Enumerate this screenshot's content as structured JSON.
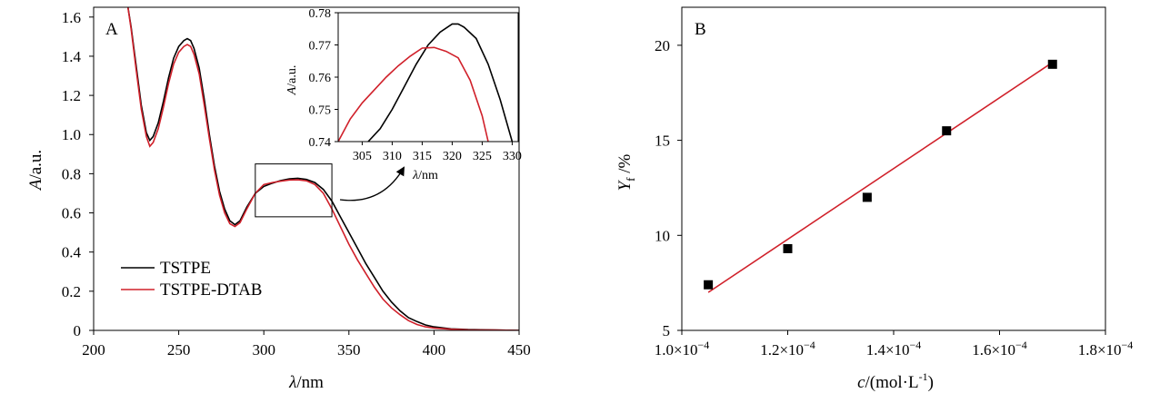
{
  "colors": {
    "black_series": "#000000",
    "red_series": "#d0202a"
  },
  "chart_data": [
    {
      "id": "A",
      "type": "line",
      "panel_label": "A",
      "xlabel_italic": "λ",
      "xlabel_rest": "/nm",
      "ylabel_italic": "A",
      "ylabel_rest": "/a.u.",
      "xlim": [
        200,
        450
      ],
      "ylim": [
        0,
        1.65
      ],
      "xticks": [
        200,
        250,
        300,
        350,
        400,
        450
      ],
      "xtick_labels": [
        "200",
        "250",
        "300",
        "350",
        "400",
        "450"
      ],
      "yticks": [
        0,
        0.2,
        0.4,
        0.6,
        0.8,
        1.0,
        1.2,
        1.4,
        1.6
      ],
      "ytick_labels": [
        "0",
        "0.2",
        "0.4",
        "0.6",
        "0.8",
        "1.0",
        "1.2",
        "1.4",
        "1.6"
      ],
      "legend_position": "bottom-left",
      "series": [
        {
          "name": "TSTPE",
          "color": "#000000",
          "points": [
            [
              220,
              1.66
            ],
            [
              222,
              1.55
            ],
            [
              225,
              1.35
            ],
            [
              228,
              1.15
            ],
            [
              231,
              1.01
            ],
            [
              233,
              0.97
            ],
            [
              235,
              0.99
            ],
            [
              238,
              1.06
            ],
            [
              241,
              1.17
            ],
            [
              244,
              1.29
            ],
            [
              247,
              1.39
            ],
            [
              250,
              1.45
            ],
            [
              253,
              1.48
            ],
            [
              255,
              1.49
            ],
            [
              257,
              1.48
            ],
            [
              259,
              1.44
            ],
            [
              262,
              1.34
            ],
            [
              265,
              1.18
            ],
            [
              268,
              1.0
            ],
            [
              271,
              0.84
            ],
            [
              274,
              0.71
            ],
            [
              277,
              0.62
            ],
            [
              280,
              0.56
            ],
            [
              283,
              0.54
            ],
            [
              286,
              0.56
            ],
            [
              290,
              0.63
            ],
            [
              295,
              0.7
            ],
            [
              300,
              0.735
            ],
            [
              305,
              0.752
            ],
            [
              310,
              0.765
            ],
            [
              315,
              0.774
            ],
            [
              320,
              0.777
            ],
            [
              325,
              0.771
            ],
            [
              330,
              0.755
            ],
            [
              335,
              0.72
            ],
            [
              340,
              0.66
            ],
            [
              345,
              0.58
            ],
            [
              350,
              0.5
            ],
            [
              355,
              0.42
            ],
            [
              360,
              0.34
            ],
            [
              365,
              0.27
            ],
            [
              370,
              0.2
            ],
            [
              375,
              0.145
            ],
            [
              380,
              0.1
            ],
            [
              385,
              0.065
            ],
            [
              390,
              0.045
            ],
            [
              395,
              0.028
            ],
            [
              400,
              0.018
            ],
            [
              410,
              0.008
            ],
            [
              420,
              0.004
            ],
            [
              435,
              0.002
            ],
            [
              450,
              0.0
            ]
          ]
        },
        {
          "name": "TSTPE-DTAB",
          "color": "#d0202a",
          "points": [
            [
              220,
              1.66
            ],
            [
              222,
              1.54
            ],
            [
              225,
              1.33
            ],
            [
              228,
              1.13
            ],
            [
              231,
              0.99
            ],
            [
              233,
              0.94
            ],
            [
              235,
              0.96
            ],
            [
              238,
              1.03
            ],
            [
              241,
              1.14
            ],
            [
              244,
              1.26
            ],
            [
              247,
              1.36
            ],
            [
              250,
              1.42
            ],
            [
              253,
              1.45
            ],
            [
              255,
              1.46
            ],
            [
              257,
              1.45
            ],
            [
              259,
              1.41
            ],
            [
              262,
              1.31
            ],
            [
              265,
              1.15
            ],
            [
              268,
              0.98
            ],
            [
              271,
              0.82
            ],
            [
              274,
              0.69
            ],
            [
              277,
              0.6
            ],
            [
              280,
              0.545
            ],
            [
              283,
              0.53
            ],
            [
              286,
              0.55
            ],
            [
              290,
              0.62
            ],
            [
              295,
              0.7
            ],
            [
              300,
              0.745
            ],
            [
              305,
              0.755
            ],
            [
              310,
              0.762
            ],
            [
              315,
              0.768
            ],
            [
              320,
              0.769
            ],
            [
              325,
              0.764
            ],
            [
              330,
              0.745
            ],
            [
              335,
              0.7
            ],
            [
              340,
              0.62
            ],
            [
              345,
              0.53
            ],
            [
              350,
              0.44
            ],
            [
              355,
              0.36
            ],
            [
              360,
              0.29
            ],
            [
              365,
              0.22
            ],
            [
              370,
              0.16
            ],
            [
              375,
              0.115
            ],
            [
              380,
              0.08
            ],
            [
              385,
              0.05
            ],
            [
              390,
              0.03
            ],
            [
              395,
              0.018
            ],
            [
              400,
              0.012
            ],
            [
              410,
              0.006
            ],
            [
              420,
              0.003
            ],
            [
              435,
              0.002
            ],
            [
              450,
              0.0
            ]
          ]
        }
      ],
      "inset": {
        "xlabel_italic": "λ",
        "xlabel_rest": "/nm",
        "ylabel_italic": "A",
        "ylabel_rest": "/a.u.",
        "xlim": [
          301,
          331
        ],
        "ylim": [
          0.74,
          0.78
        ],
        "xticks": [
          305,
          310,
          315,
          320,
          325,
          330
        ],
        "xtick_labels": [
          "305",
          "310",
          "315",
          "320",
          "325",
          "330"
        ],
        "yticks": [
          0.74,
          0.75,
          0.76,
          0.77,
          0.78
        ],
        "ytick_labels": [
          "0.74",
          "0.75",
          "0.76",
          "0.77",
          "0.78"
        ],
        "zoom_box_x": [
          295,
          340
        ],
        "zoom_box_y": [
          0.58,
          0.85
        ],
        "series": [
          {
            "name": "TSTPE",
            "color": "#000000",
            "points": [
              [
                306,
                0.74
              ],
              [
                308,
                0.744
              ],
              [
                310,
                0.75
              ],
              [
                312,
                0.757
              ],
              [
                314,
                0.764
              ],
              [
                316,
                0.77
              ],
              [
                318,
                0.774
              ],
              [
                320,
                0.7765
              ],
              [
                321,
                0.7765
              ],
              [
                322,
                0.7755
              ],
              [
                324,
                0.772
              ],
              [
                326,
                0.764
              ],
              [
                328,
                0.753
              ],
              [
                330,
                0.74
              ]
            ]
          },
          {
            "name": "TSTPE-DTAB",
            "color": "#d0202a",
            "points": [
              [
                301,
                0.74
              ],
              [
                303,
                0.747
              ],
              [
                305,
                0.752
              ],
              [
                307,
                0.756
              ],
              [
                309,
                0.76
              ],
              [
                311,
                0.7635
              ],
              [
                313,
                0.7665
              ],
              [
                315,
                0.769
              ],
              [
                317,
                0.7692
              ],
              [
                319,
                0.768
              ],
              [
                321,
                0.766
              ],
              [
                323,
                0.759
              ],
              [
                325,
                0.748
              ],
              [
                326,
                0.74
              ]
            ]
          }
        ]
      }
    },
    {
      "id": "B",
      "type": "scatter",
      "panel_label": "B",
      "xlabel_italic": "c",
      "xlabel_rest": "/(mol·L",
      "xlabel_sup": "-1",
      "xlabel_close": ")",
      "ylabel_italic": "Y",
      "ylabel_sub": "f",
      "ylabel_rest": " /%",
      "xlim": [
        0.0001,
        0.00018
      ],
      "ylim": [
        5,
        22
      ],
      "xticks": [
        0.0001,
        0.00012,
        0.00014,
        0.00016,
        0.00018
      ],
      "xtick_labels": [
        "1.0×10",
        "1.2×10",
        "1.4×10",
        "1.6×10",
        "1.8×10"
      ],
      "xtick_exponent": "−4",
      "yticks": [
        5,
        10,
        15,
        20
      ],
      "ytick_labels": [
        "5",
        "10",
        "15",
        "20"
      ],
      "points": {
        "x": [
          0.000105,
          0.00012,
          0.000135,
          0.00015,
          0.00017
        ],
        "y": [
          7.4,
          9.3,
          12.0,
          15.5,
          19.0
        ]
      },
      "fit_line": {
        "x": [
          0.000105,
          0.00017
        ],
        "y": [
          7.0,
          19.1
        ],
        "color": "#d0202a"
      }
    }
  ]
}
